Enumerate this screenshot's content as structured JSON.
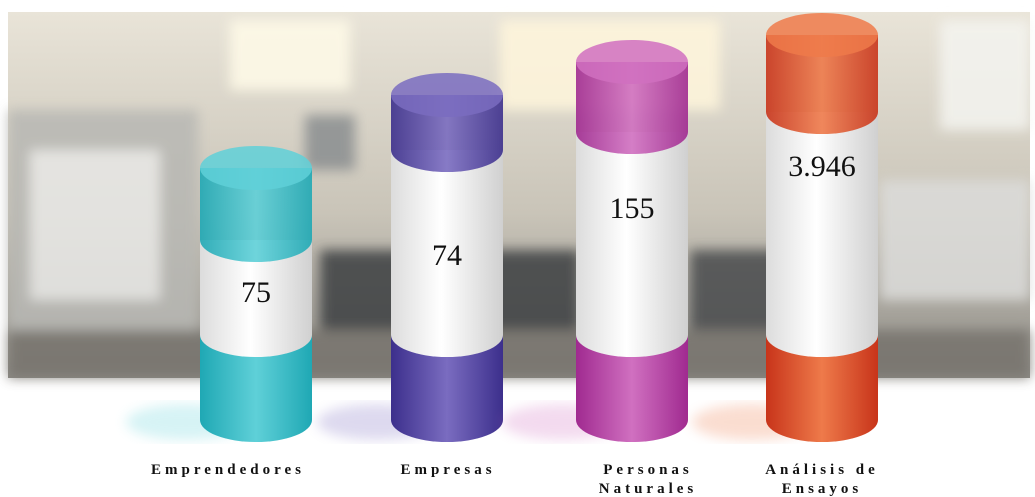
{
  "items": [
    {
      "label": [
        "Emprendedores"
      ],
      "value": "75"
    },
    {
      "label": [
        "Empresas"
      ],
      "value": "74"
    },
    {
      "label": [
        "Personas",
        "Naturales"
      ],
      "value": "155"
    },
    {
      "label": [
        "Análisis de",
        "Ensayos"
      ],
      "value": "3.946"
    }
  ]
}
